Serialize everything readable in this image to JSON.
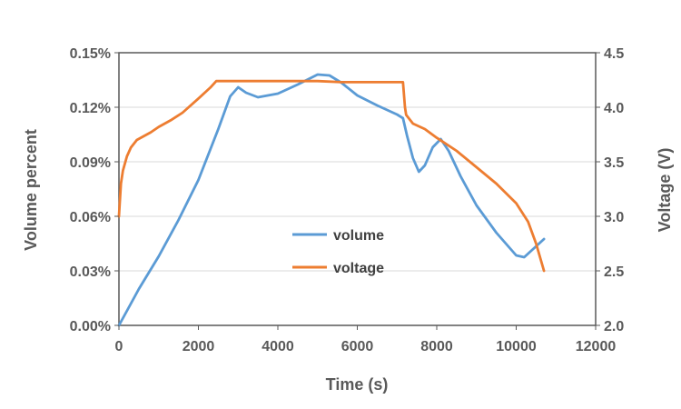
{
  "chart_data": {
    "type": "line",
    "title": "",
    "xlabel": "Time (s)",
    "ylabel_left": "Volume percent",
    "ylabel_right": "Voltage (V)",
    "xlim": [
      0,
      12000
    ],
    "ylim_left": [
      0,
      0.15
    ],
    "ylim_right": [
      2.0,
      4.5
    ],
    "x_ticks": [
      "0",
      "2000",
      "4000",
      "6000",
      "8000",
      "10000",
      "12000"
    ],
    "y_left_ticks": [
      "0.00%",
      "0.03%",
      "0.06%",
      "0.09%",
      "0.12%",
      "0.15%"
    ],
    "y_right_ticks": [
      "2.0",
      "2.5",
      "3.0",
      "3.5",
      "4.0",
      "4.5"
    ],
    "grid": true,
    "legend_position": "center",
    "series": [
      {
        "name": "volume",
        "color": "#5b9bd5",
        "axis": "left",
        "x": [
          0,
          200,
          500,
          1000,
          1500,
          2000,
          2500,
          2800,
          3000,
          3200,
          3500,
          4000,
          4500,
          5000,
          5300,
          5600,
          6000,
          6500,
          7000,
          7150,
          7250,
          7400,
          7550,
          7700,
          7900,
          8100,
          8300,
          8600,
          9000,
          9500,
          10000,
          10200,
          10500,
          10700
        ],
        "y": [
          0.0,
          0.008,
          0.02,
          0.038,
          0.058,
          0.08,
          0.108,
          0.126,
          0.131,
          0.128,
          0.1255,
          0.1275,
          0.1325,
          0.138,
          0.1375,
          0.1335,
          0.1265,
          0.121,
          0.116,
          0.114,
          0.1045,
          0.092,
          0.0845,
          0.088,
          0.098,
          0.1025,
          0.096,
          0.082,
          0.066,
          0.051,
          0.0385,
          0.0375,
          0.0435,
          0.0475
        ]
      },
      {
        "name": "voltage",
        "color": "#ed7d31",
        "axis": "right",
        "x": [
          0,
          50,
          100,
          200,
          300,
          450,
          600,
          800,
          1000,
          1300,
          1600,
          2000,
          2300,
          2450,
          5000,
          5600,
          7150,
          7200,
          7230,
          7400,
          7700,
          8000,
          8500,
          9000,
          9500,
          10000,
          10300,
          10500,
          10700
        ],
        "y": [
          3.0,
          3.3,
          3.42,
          3.55,
          3.63,
          3.7,
          3.73,
          3.77,
          3.82,
          3.88,
          3.95,
          4.08,
          4.18,
          4.24,
          4.24,
          4.23,
          4.23,
          4.0,
          3.93,
          3.85,
          3.8,
          3.72,
          3.6,
          3.45,
          3.3,
          3.12,
          2.95,
          2.75,
          2.5
        ]
      }
    ]
  }
}
